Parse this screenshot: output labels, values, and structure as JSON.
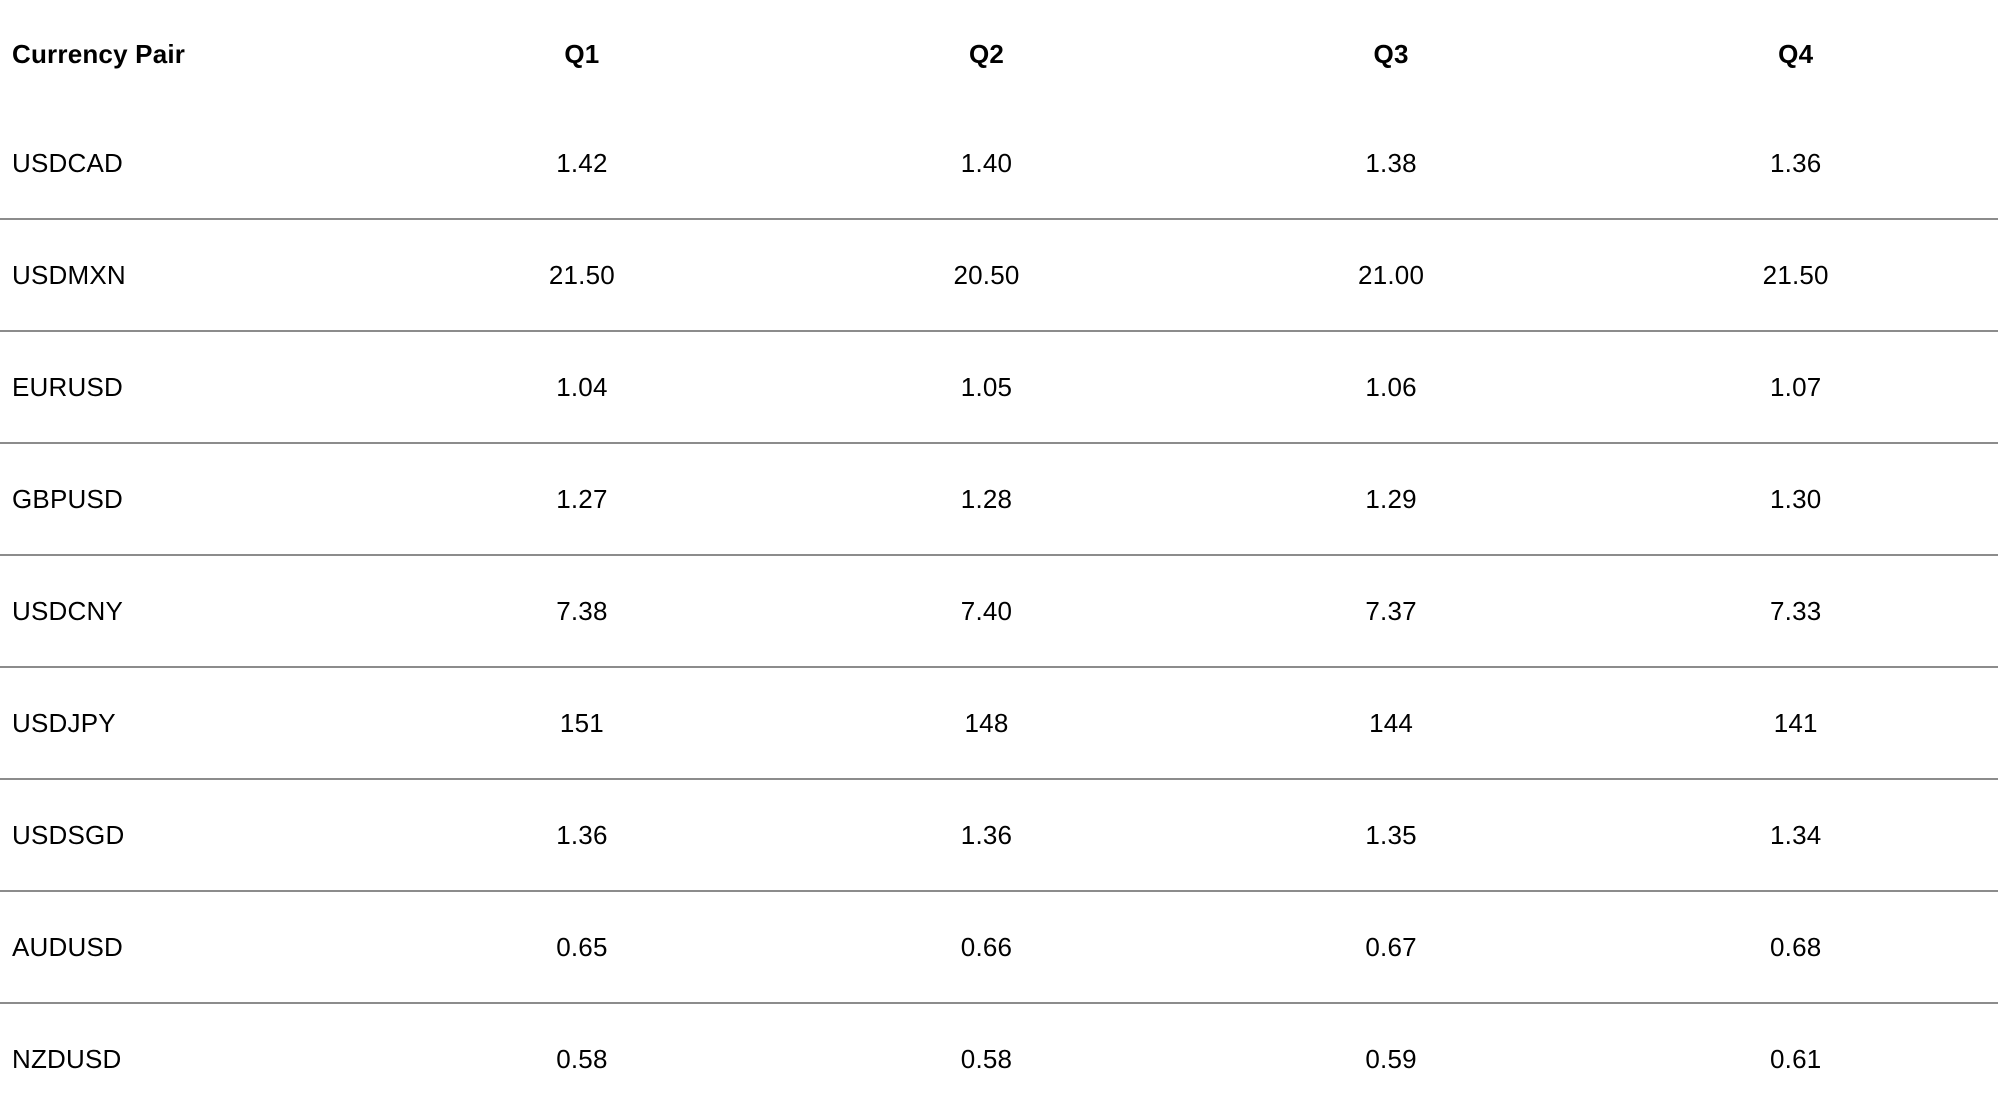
{
  "colors": {
    "background": "#ffffff",
    "text": "#000000",
    "divider": "#8c8c8c"
  },
  "table": {
    "columns": [
      "Currency Pair",
      "Q1",
      "Q2",
      "Q3",
      "Q4"
    ],
    "rows": [
      {
        "pair": "USDCAD",
        "values": [
          "1.42",
          "1.40",
          "1.38",
          "1.36"
        ]
      },
      {
        "pair": "USDMXN",
        "values": [
          "21.50",
          "20.50",
          "21.00",
          "21.50"
        ]
      },
      {
        "pair": "EURUSD",
        "values": [
          "1.04",
          "1.05",
          "1.06",
          "1.07"
        ]
      },
      {
        "pair": "GBPUSD",
        "values": [
          "1.27",
          "1.28",
          "1.29",
          "1.30"
        ]
      },
      {
        "pair": "USDCNY",
        "values": [
          "7.38",
          "7.40",
          "7.37",
          "7.33"
        ]
      },
      {
        "pair": "USDJPY",
        "values": [
          "151",
          "148",
          "144",
          "141"
        ]
      },
      {
        "pair": "USDSGD",
        "values": [
          "1.36",
          "1.36",
          "1.35",
          "1.34"
        ]
      },
      {
        "pair": "AUDUSD",
        "values": [
          "0.65",
          "0.66",
          "0.67",
          "0.68"
        ]
      },
      {
        "pair": "NZDUSD",
        "values": [
          "0.58",
          "0.58",
          "0.59",
          "0.61"
        ]
      }
    ]
  },
  "chart_data": {
    "type": "table",
    "title": "",
    "columns": [
      "Currency Pair",
      "Q1",
      "Q2",
      "Q3",
      "Q4"
    ],
    "categories": [
      "Q1",
      "Q2",
      "Q3",
      "Q4"
    ],
    "series": [
      {
        "name": "USDCAD",
        "values": [
          1.42,
          1.4,
          1.38,
          1.36
        ]
      },
      {
        "name": "USDMXN",
        "values": [
          21.5,
          20.5,
          21.0,
          21.5
        ]
      },
      {
        "name": "EURUSD",
        "values": [
          1.04,
          1.05,
          1.06,
          1.07
        ]
      },
      {
        "name": "GBPUSD",
        "values": [
          1.27,
          1.28,
          1.29,
          1.3
        ]
      },
      {
        "name": "USDCNY",
        "values": [
          7.38,
          7.4,
          7.37,
          7.33
        ]
      },
      {
        "name": "USDJPY",
        "values": [
          151,
          148,
          144,
          141
        ]
      },
      {
        "name": "USDSGD",
        "values": [
          1.36,
          1.36,
          1.35,
          1.34
        ]
      },
      {
        "name": "AUDUSD",
        "values": [
          0.65,
          0.66,
          0.67,
          0.68
        ]
      },
      {
        "name": "NZDUSD",
        "values": [
          0.58,
          0.58,
          0.59,
          0.61
        ]
      }
    ],
    "layout": {
      "grid": "horizontal-row-dividers",
      "legend": "none",
      "header_bold": true
    }
  }
}
